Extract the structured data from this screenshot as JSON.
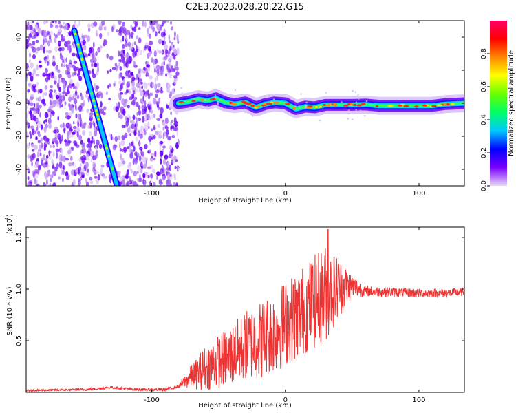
{
  "title": "C2E3.2023.028.20.22.G15",
  "chart_data": [
    {
      "type": "heatmap",
      "xlabel": "Height of straight line (km)",
      "ylabel": "Frequency (Hz)",
      "xlim": [
        -194,
        134
      ],
      "ylim": [
        -50,
        50
      ],
      "xticks": [
        -100,
        0,
        100
      ],
      "xtick_labels": [
        "-100",
        "0",
        "100"
      ],
      "yticks": [
        -40,
        -20,
        0,
        20,
        40
      ],
      "ytick_labels": [
        "-40",
        "-20",
        "0",
        "20",
        "40"
      ],
      "colorbar": {
        "label": "Normalized spectral amplitude",
        "range": [
          0,
          1
        ],
        "ticks": [
          0.0,
          0.2,
          0.4,
          0.6,
          0.8
        ],
        "tick_labels": [
          "0.0",
          "0.2",
          "0.4",
          "0.6",
          "0.8"
        ],
        "colormap": [
          "#e8d8f8",
          "#7b00ff",
          "#0000ff",
          "#00c8ff",
          "#00ff66",
          "#66ff00",
          "#ffff00",
          "#ff8800",
          "#ff0000",
          "#ff0066"
        ]
      },
      "streak": {
        "from": [
          -158,
          44
        ],
        "to": [
          -126,
          -50
        ]
      },
      "tone_trace": {
        "x": [
          -80,
          -72,
          -65,
          -58,
          -52,
          -45,
          -38,
          -30,
          -22,
          -15,
          -8,
          0,
          8,
          15,
          22,
          30,
          40,
          50,
          60,
          70,
          80,
          90,
          100,
          110,
          120,
          134
        ],
        "y": [
          0.0,
          1.0,
          2.5,
          1.5,
          3.0,
          0.5,
          -0.5,
          0.5,
          -2.5,
          -0.5,
          0.5,
          0.0,
          -3.5,
          -2.0,
          -2.5,
          -1.0,
          -1.0,
          -1.0,
          -0.8,
          -1.5,
          -1.5,
          -1.5,
          -1.5,
          -1.5,
          -0.5,
          0.0
        ]
      },
      "noise_region_x": [
        -194,
        -80
      ]
    },
    {
      "type": "line",
      "xlabel": "Height of straight line (km)",
      "ylabel": "SNR (10 * v/v)",
      "scale_label": "(x10",
      "scale_exponent": "4",
      "xlim": [
        -194,
        134
      ],
      "ylim": [
        0,
        1.6
      ],
      "xticks": [
        -100,
        0,
        100
      ],
      "xtick_labels": [
        "-100",
        "0",
        "100"
      ],
      "yticks": [
        0.5,
        1.0,
        1.5
      ],
      "ytick_labels": [
        "0.5",
        "1.0",
        "1.5"
      ],
      "color": "#ee3333",
      "envelope": {
        "x": [
          -194,
          -150,
          -130,
          -110,
          -90,
          -80,
          -70,
          -60,
          -50,
          -40,
          -30,
          -20,
          -10,
          0,
          10,
          20,
          30,
          40,
          50,
          60,
          80,
          100,
          120,
          134
        ],
        "y": [
          0.02,
          0.03,
          0.05,
          0.03,
          0.03,
          0.06,
          0.18,
          0.28,
          0.35,
          0.42,
          0.52,
          0.58,
          0.65,
          0.75,
          0.85,
          0.95,
          1.05,
          1.08,
          1.05,
          0.99,
          0.98,
          0.97,
          0.97,
          0.98
        ]
      },
      "spread": {
        "x": [
          -194,
          -80,
          -70,
          -60,
          -40,
          -20,
          0,
          20,
          30,
          40,
          50,
          60,
          134
        ],
        "y": [
          0.01,
          0.015,
          0.12,
          0.22,
          0.3,
          0.38,
          0.42,
          0.45,
          0.48,
          0.3,
          0.12,
          0.05,
          0.04
        ]
      },
      "peak_x": 32,
      "peak_y": 1.58
    }
  ]
}
